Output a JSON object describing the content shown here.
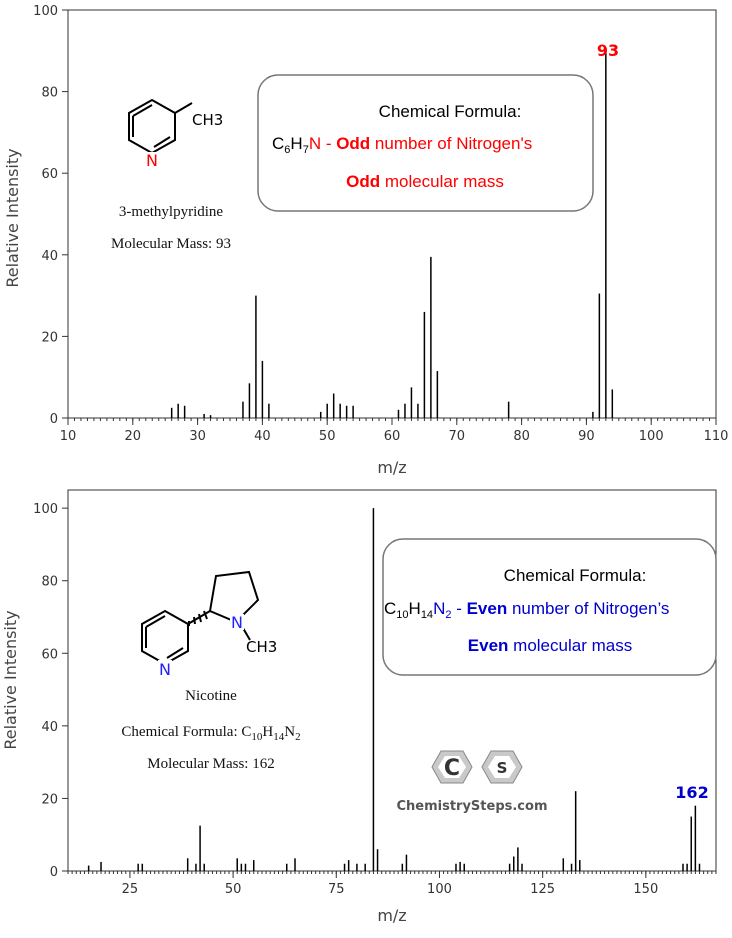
{
  "chart_data": [
    {
      "type": "bar",
      "xlabel": "m/z",
      "ylabel": "Relative Intensity",
      "xlim": [
        10,
        110
      ],
      "ylim": [
        0,
        100
      ],
      "xticks": [
        10,
        20,
        30,
        40,
        50,
        60,
        70,
        80,
        90,
        100,
        110
      ],
      "yticks": [
        0,
        20,
        40,
        60,
        80,
        100
      ],
      "peaks": [
        {
          "x": 26,
          "y": 2.5
        },
        {
          "x": 27,
          "y": 3.5
        },
        {
          "x": 28,
          "y": 3
        },
        {
          "x": 31,
          "y": 1
        },
        {
          "x": 32,
          "y": 0.7
        },
        {
          "x": 37,
          "y": 4
        },
        {
          "x": 38,
          "y": 8.5
        },
        {
          "x": 39,
          "y": 30
        },
        {
          "x": 40,
          "y": 14
        },
        {
          "x": 41,
          "y": 3.5
        },
        {
          "x": 49,
          "y": 1.5
        },
        {
          "x": 50,
          "y": 3.5
        },
        {
          "x": 51,
          "y": 6
        },
        {
          "x": 52,
          "y": 3.5
        },
        {
          "x": 53,
          "y": 3
        },
        {
          "x": 54,
          "y": 3
        },
        {
          "x": 61,
          "y": 2
        },
        {
          "x": 62,
          "y": 3.5
        },
        {
          "x": 63,
          "y": 7.5
        },
        {
          "x": 64,
          "y": 3.5
        },
        {
          "x": 65,
          "y": 26
        },
        {
          "x": 66,
          "y": 39.5
        },
        {
          "x": 67,
          "y": 11.5
        },
        {
          "x": 78,
          "y": 4
        },
        {
          "x": 91,
          "y": 1.5
        },
        {
          "x": 92,
          "y": 30.5
        },
        {
          "x": 93,
          "y": 90.5
        },
        {
          "x": 94,
          "y": 7
        }
      ],
      "peak_label": "93",
      "compound": {
        "name": "3-methylpyridine",
        "mass_line": "Molecular Mass: 93",
        "substituent": "CH3",
        "ring_atom": "N"
      },
      "info_box": {
        "heading": "Chemical Formula:",
        "formula_c": "C",
        "sub1": "6",
        "formula_h": "H",
        "sub2": "7",
        "formula_n": "N",
        "line2_dash": " - ",
        "line2_bold": "Odd",
        "line2_rest": " number of Nitrogen's",
        "line3_bold": "Odd",
        "line3_rest": " molecular mass"
      }
    },
    {
      "type": "bar",
      "xlabel": "m/z",
      "ylabel": "Relative Intensity",
      "xlim": [
        10,
        167
      ],
      "ylim": [
        0,
        105
      ],
      "xticks": [
        25,
        50,
        75,
        100,
        125,
        150
      ],
      "yticks": [
        0,
        20,
        40,
        60,
        80,
        100
      ],
      "peaks": [
        {
          "x": 15,
          "y": 1.5
        },
        {
          "x": 18,
          "y": 2.5
        },
        {
          "x": 27,
          "y": 2
        },
        {
          "x": 28,
          "y": 2
        },
        {
          "x": 39,
          "y": 3.5
        },
        {
          "x": 41,
          "y": 2
        },
        {
          "x": 42,
          "y": 12.5
        },
        {
          "x": 43,
          "y": 2
        },
        {
          "x": 51,
          "y": 3.5
        },
        {
          "x": 52,
          "y": 2
        },
        {
          "x": 53,
          "y": 2
        },
        {
          "x": 55,
          "y": 3
        },
        {
          "x": 63,
          "y": 2
        },
        {
          "x": 65,
          "y": 3.5
        },
        {
          "x": 77,
          "y": 2
        },
        {
          "x": 78,
          "y": 3
        },
        {
          "x": 80,
          "y": 2
        },
        {
          "x": 82,
          "y": 2
        },
        {
          "x": 84,
          "y": 100
        },
        {
          "x": 85,
          "y": 6
        },
        {
          "x": 91,
          "y": 2
        },
        {
          "x": 92,
          "y": 4.5
        },
        {
          "x": 104,
          "y": 2
        },
        {
          "x": 105,
          "y": 2.5
        },
        {
          "x": 106,
          "y": 2
        },
        {
          "x": 117,
          "y": 2
        },
        {
          "x": 118,
          "y": 4
        },
        {
          "x": 119,
          "y": 6.5
        },
        {
          "x": 120,
          "y": 2
        },
        {
          "x": 130,
          "y": 3.5
        },
        {
          "x": 132,
          "y": 2
        },
        {
          "x": 133,
          "y": 22
        },
        {
          "x": 134,
          "y": 3
        },
        {
          "x": 159,
          "y": 2
        },
        {
          "x": 160,
          "y": 2
        },
        {
          "x": 161,
          "y": 15
        },
        {
          "x": 162,
          "y": 18
        },
        {
          "x": 163,
          "y": 2
        }
      ],
      "peak_label": "162",
      "compound": {
        "name": "Nicotine",
        "formula_prefix": "Chemical Formula: ",
        "formula_c": "C",
        "sub1": "10",
        "formula_h": "H",
        "sub2": "14",
        "formula_n": "N",
        "sub3": "2",
        "mass_line": "Molecular Mass: 162",
        "substituent": "CH3",
        "ring_atom": "N",
        "amine_atom": "N"
      },
      "info_box": {
        "heading": "Chemical Formula:",
        "formula_c": "C",
        "sub1": "10",
        "formula_h": "H",
        "sub2": "14",
        "formula_n": "N",
        "sub3": "2",
        "line2_dash": " - ",
        "line2_bold": "Even",
        "line2_rest": " number of Nitrogen’s",
        "line3_bold": "Even",
        "line3_rest": " molecular mass"
      },
      "logo": {
        "letters": [
          "C",
          "S"
        ],
        "text": "ChemistrySteps.com"
      }
    }
  ],
  "colors": {
    "odd": "#ff0000",
    "even": "#0000cc",
    "nitrogen": "#2222ff",
    "text": "#000000"
  }
}
